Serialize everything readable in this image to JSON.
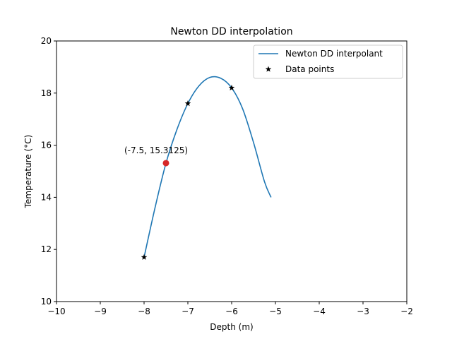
{
  "chart_data": {
    "type": "line",
    "title": "Newton DD interpolation",
    "xlabel": "Depth (m)",
    "ylabel": "Temperature (°C)",
    "xlim": [
      -10,
      -2
    ],
    "ylim": [
      10,
      20
    ],
    "xticks": [
      -10,
      -9,
      -8,
      -7,
      -6,
      -5,
      -4,
      -3,
      -2
    ],
    "yticks": [
      10,
      12,
      14,
      16,
      18,
      20
    ],
    "xtick_labels": [
      "−10",
      "−9",
      "−8",
      "−7",
      "−6",
      "−5",
      "−4",
      "−3",
      "−2"
    ],
    "ytick_labels": [
      "10",
      "12",
      "14",
      "16",
      "18",
      "20"
    ],
    "grid": false,
    "legend_position": "top-right",
    "series": [
      {
        "name": "Newton DD interpolant",
        "style": "line",
        "color": "#1f77b4",
        "x": [
          -8.0,
          -7.75,
          -7.5,
          -7.25,
          -7.0,
          -6.75,
          -6.5,
          -6.25,
          -6.0,
          -5.75,
          -5.5,
          -5.25,
          -5.1
        ],
        "y": [
          11.7,
          13.6,
          15.31,
          16.6,
          17.6,
          18.27,
          18.6,
          18.57,
          18.2,
          17.4,
          16.1,
          14.6,
          14.0
        ]
      },
      {
        "name": "Data points",
        "style": "marker",
        "marker": "star",
        "color": "#000000",
        "x": [
          -8,
          -7,
          -6
        ],
        "y": [
          11.7,
          17.6,
          18.2
        ]
      }
    ],
    "highlight_point": {
      "x": -7.5,
      "y": 15.3125,
      "color": "#d62728",
      "label": "(-7.5, 15.3125)"
    }
  }
}
